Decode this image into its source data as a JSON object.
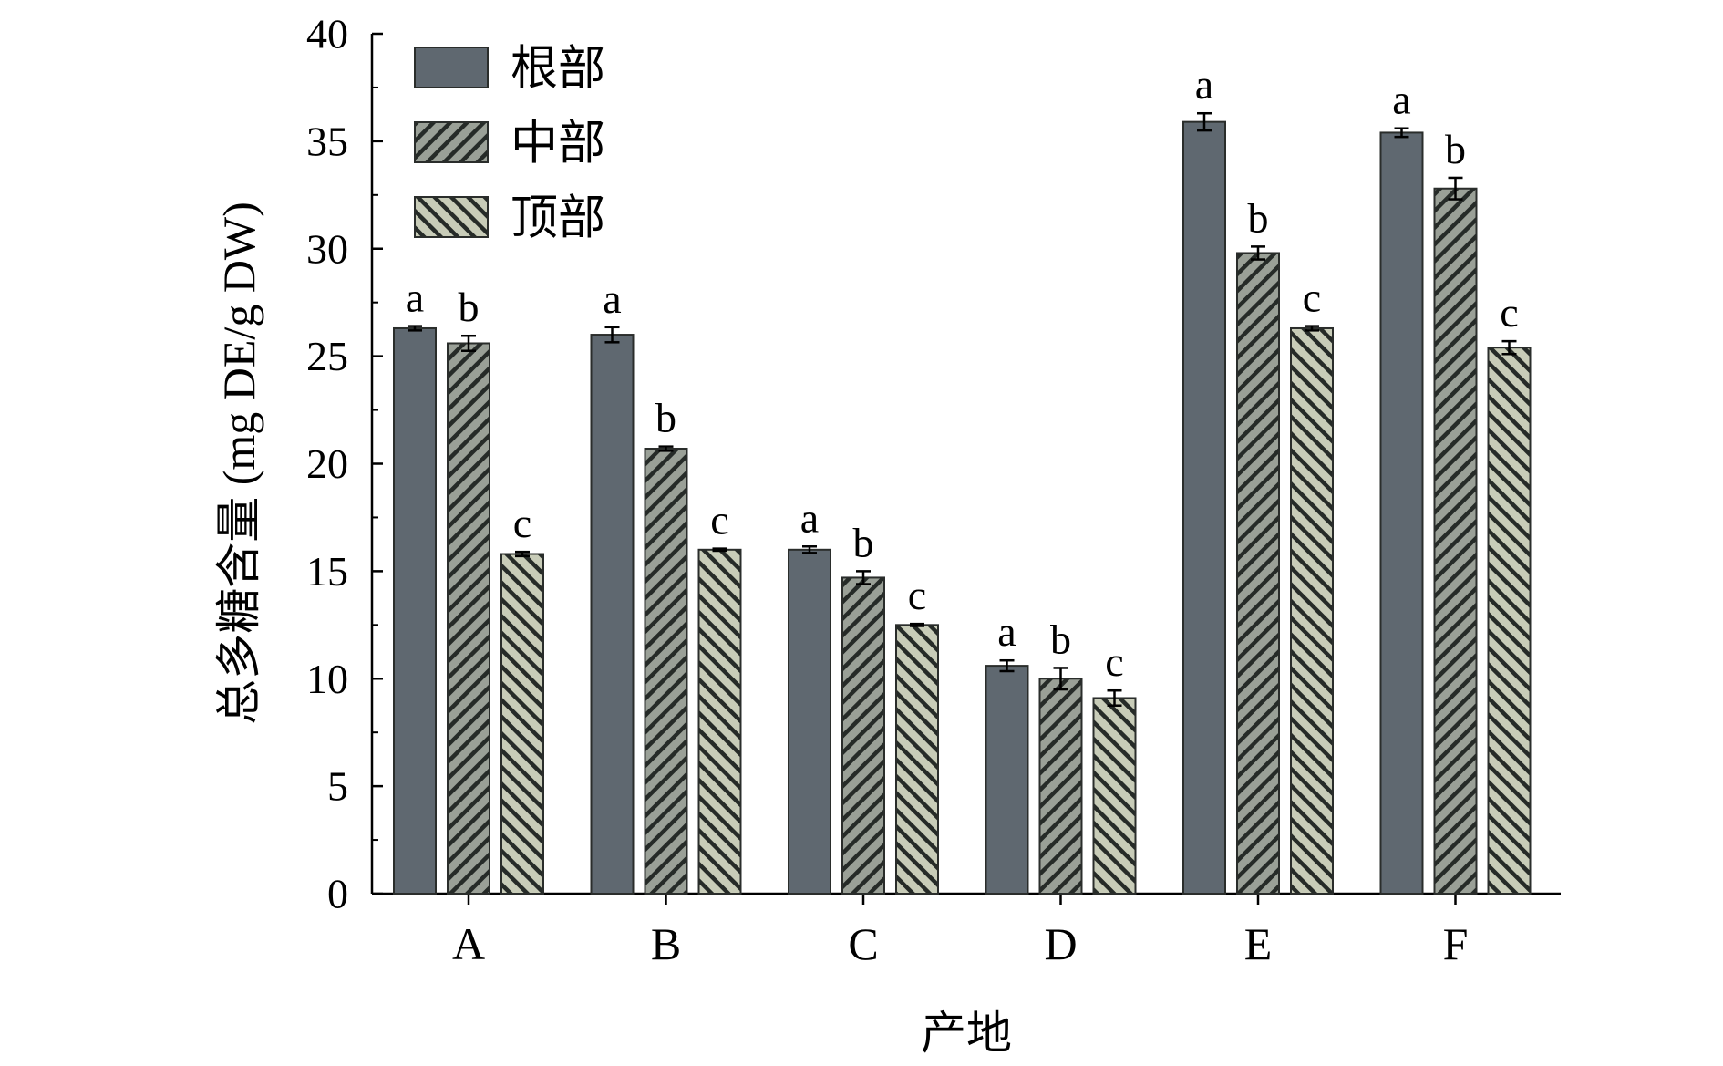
{
  "chart_data": {
    "type": "bar",
    "title": "",
    "xlabel": "产地",
    "ylabel": "总多糖含量 (mg DE/g DW)",
    "categories": [
      "A",
      "B",
      "C",
      "D",
      "E",
      "F"
    ],
    "ylim": [
      0,
      40
    ],
    "yticks": [
      0,
      5,
      10,
      15,
      20,
      25,
      30,
      35,
      40
    ],
    "grid": false,
    "legend_position": "top-left",
    "series": [
      {
        "name": "根部",
        "pattern": "solid",
        "color": "#5f6870",
        "values": [
          26.3,
          26.0,
          16.0,
          10.6,
          35.9,
          35.4
        ],
        "errors": [
          0.1,
          0.35,
          0.15,
          0.25,
          0.4,
          0.2
        ],
        "letters": [
          "a",
          "a",
          "a",
          "a",
          "a",
          "a"
        ]
      },
      {
        "name": "中部",
        "pattern": "forward-hatch",
        "color": "#9aa097",
        "values": [
          25.6,
          20.7,
          14.7,
          10.0,
          29.8,
          32.8
        ],
        "errors": [
          0.35,
          0.1,
          0.3,
          0.5,
          0.3,
          0.5
        ],
        "letters": [
          "b",
          "b",
          "b",
          "b",
          "b",
          "b"
        ]
      },
      {
        "name": "顶部",
        "pattern": "back-hatch",
        "color": "#c8ccb8",
        "values": [
          15.8,
          16.0,
          12.5,
          9.1,
          26.3,
          25.4
        ],
        "errors": [
          0.1,
          0.05,
          0.05,
          0.35,
          0.1,
          0.3
        ],
        "letters": [
          "c",
          "c",
          "c",
          "c",
          "c",
          "c"
        ]
      }
    ]
  }
}
